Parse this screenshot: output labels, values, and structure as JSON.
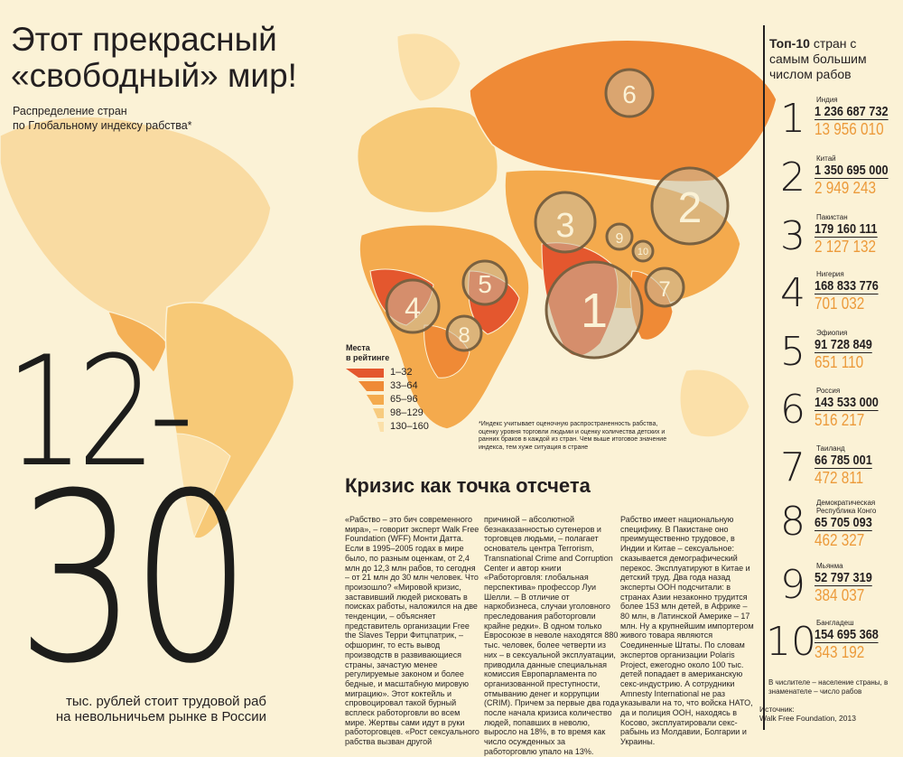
{
  "headline": [
    "Этот прекрасный",
    "«свободный» мир!"
  ],
  "subtitle": [
    "Распределение стран",
    "по Глобальному индексу рабства*"
  ],
  "big_number": {
    "line1": "12-",
    "line2": "30"
  },
  "price_caption": [
    "тыс. рублей стоит трудовой раб",
    "на невольничьем рынке в России"
  ],
  "legend": {
    "title": [
      "Места",
      "в рейтинге"
    ],
    "items": [
      {
        "label": "1–32",
        "color": "#e4572e"
      },
      {
        "label": "33–64",
        "color": "#ef8a36"
      },
      {
        "label": "65–96",
        "color": "#f4aa4d"
      },
      {
        "label": "98–129",
        "color": "#f7cb7f"
      },
      {
        "label": "130–160",
        "color": "#fbe0a9"
      }
    ]
  },
  "footnote": "*Индекс учитывает оценочную распространенность рабства, оценку уровня торговли людьми и оценку количества детских и ранних браков в каждой из стран. Чем выше итоговое значение индекса, тем хуже ситуация в стране",
  "map_markers": [
    "1",
    "2",
    "3",
    "4",
    "5",
    "6",
    "7",
    "8",
    "9",
    "10"
  ],
  "section_title": "Кризис как точка отсчета",
  "article_columns": [
    "«Рабство – это бич современного мира», – говорит эксперт Walk Free Foundation (WFF) Монти Датта. Если в 1995–2005 годах в мире было, по разным оценкам, от 2,4 млн до 12,3 млн рабов, то сегодня – от 21 млн до 30 млн человек. Что произошло? «Мировой кризис, заставивший людей рисковать в поисках работы, наложился на две тенденции, – объясняет представитель организации Free the Slaves Терри Фитцпатрик, – офшоринг, то есть вывод производств в развивающиеся страны, зачастую менее регулируемые законом и более бедные, и масштабную мировую миграцию». Этот коктейль и спровоцировал такой бурный всплеск работорговли во всем мире. Жертвы сами идут в руки работорговцев. «Рост сексуального рабства вызван другой",
    "причиной – абсолютной безнаказанностью сутенеров и торговцев людьми, – полагает основатель центра Terrorism, Transnational Crime and Corruption Center и автор книги «Работорговля: глобальная перспектива» профессор Луи Шелли. – В отличие от наркобизнеса, случаи уголовного преследования работорговли крайне редки». В одном только Евросоюзе в неволе находятся 880 тыс. человек, более четверти из них – в сексуальной эксплуатации, приводила данные специальная комиссия Европарламента по организованной преступности, отмыванию денег и коррупции (CRIM). Причем за первые два года после начала кризиса количество людей, попавших в неволю, выросло на 18%, в то время как число осужденных за работорговлю упало на 13%.",
    "Рабство имеет национальную специфику. В Пакистане оно преимущественно трудовое, в Индии и Китае – сексуальное: сказывается демографический перекос. Эксплуатируют в Китае и детский труд. Два года назад эксперты ООН подсчитали: в странах Азии незаконно трудится более 153 млн детей, в Африке – 80 млн, в Латинской Америке – 17 млн. Ну а крупнейшим импортером живого товара являются Соединенные Штаты. По словам экспертов организации Polaris Project, ежегодно около 100 тыс. детей попадает в американскую секс-индустрию. А сотрудники Amnesty International не раз указывали на то, что войска НАТО, да и полиция ООН, находясь в Косово, эксплуатировали секс-рабынь из Молдавии, Болгарии и Украины."
  ],
  "top10": {
    "title_bold": "Топ-10",
    "title_rest": "стран с самым большим числом рабов",
    "rows": [
      {
        "rank": "1",
        "country": "Индия",
        "population": "1 236 687 732",
        "slaves": "13 956 010"
      },
      {
        "rank": "2",
        "country": "Китай",
        "population": "1 350 695 000",
        "slaves": "2 949 243"
      },
      {
        "rank": "3",
        "country": "Пакистан",
        "population": "179 160 111",
        "slaves": "2 127 132"
      },
      {
        "rank": "4",
        "country": "Нигерия",
        "population": "168 833 776",
        "slaves": "701 032"
      },
      {
        "rank": "5",
        "country": "Эфиопия",
        "population": "91 728 849",
        "slaves": "651 110"
      },
      {
        "rank": "6",
        "country": "Россия",
        "population": "143 533 000",
        "slaves": "516 217"
      },
      {
        "rank": "7",
        "country": "Таиланд",
        "population": "66 785 001",
        "slaves": "472 811"
      },
      {
        "rank": "8",
        "country": "Демократическая Республика Конго",
        "population": "65 705 093",
        "slaves": "462 327"
      },
      {
        "rank": "9",
        "country": "Мьянма",
        "population": "52 797 319",
        "slaves": "384 037"
      },
      {
        "rank": "10",
        "country": "Бангладеш",
        "population": "154 695 368",
        "slaves": "343 192"
      }
    ],
    "note": "В числителе – население страны, в знаменателе – число рабов",
    "source_label": "Источник:",
    "source": "Walk Free Foundation, 2013"
  },
  "colors": {
    "background": "#fbf2d6",
    "accent": "#ec9a3a",
    "text": "#231f20",
    "marker": "#7a6140"
  }
}
